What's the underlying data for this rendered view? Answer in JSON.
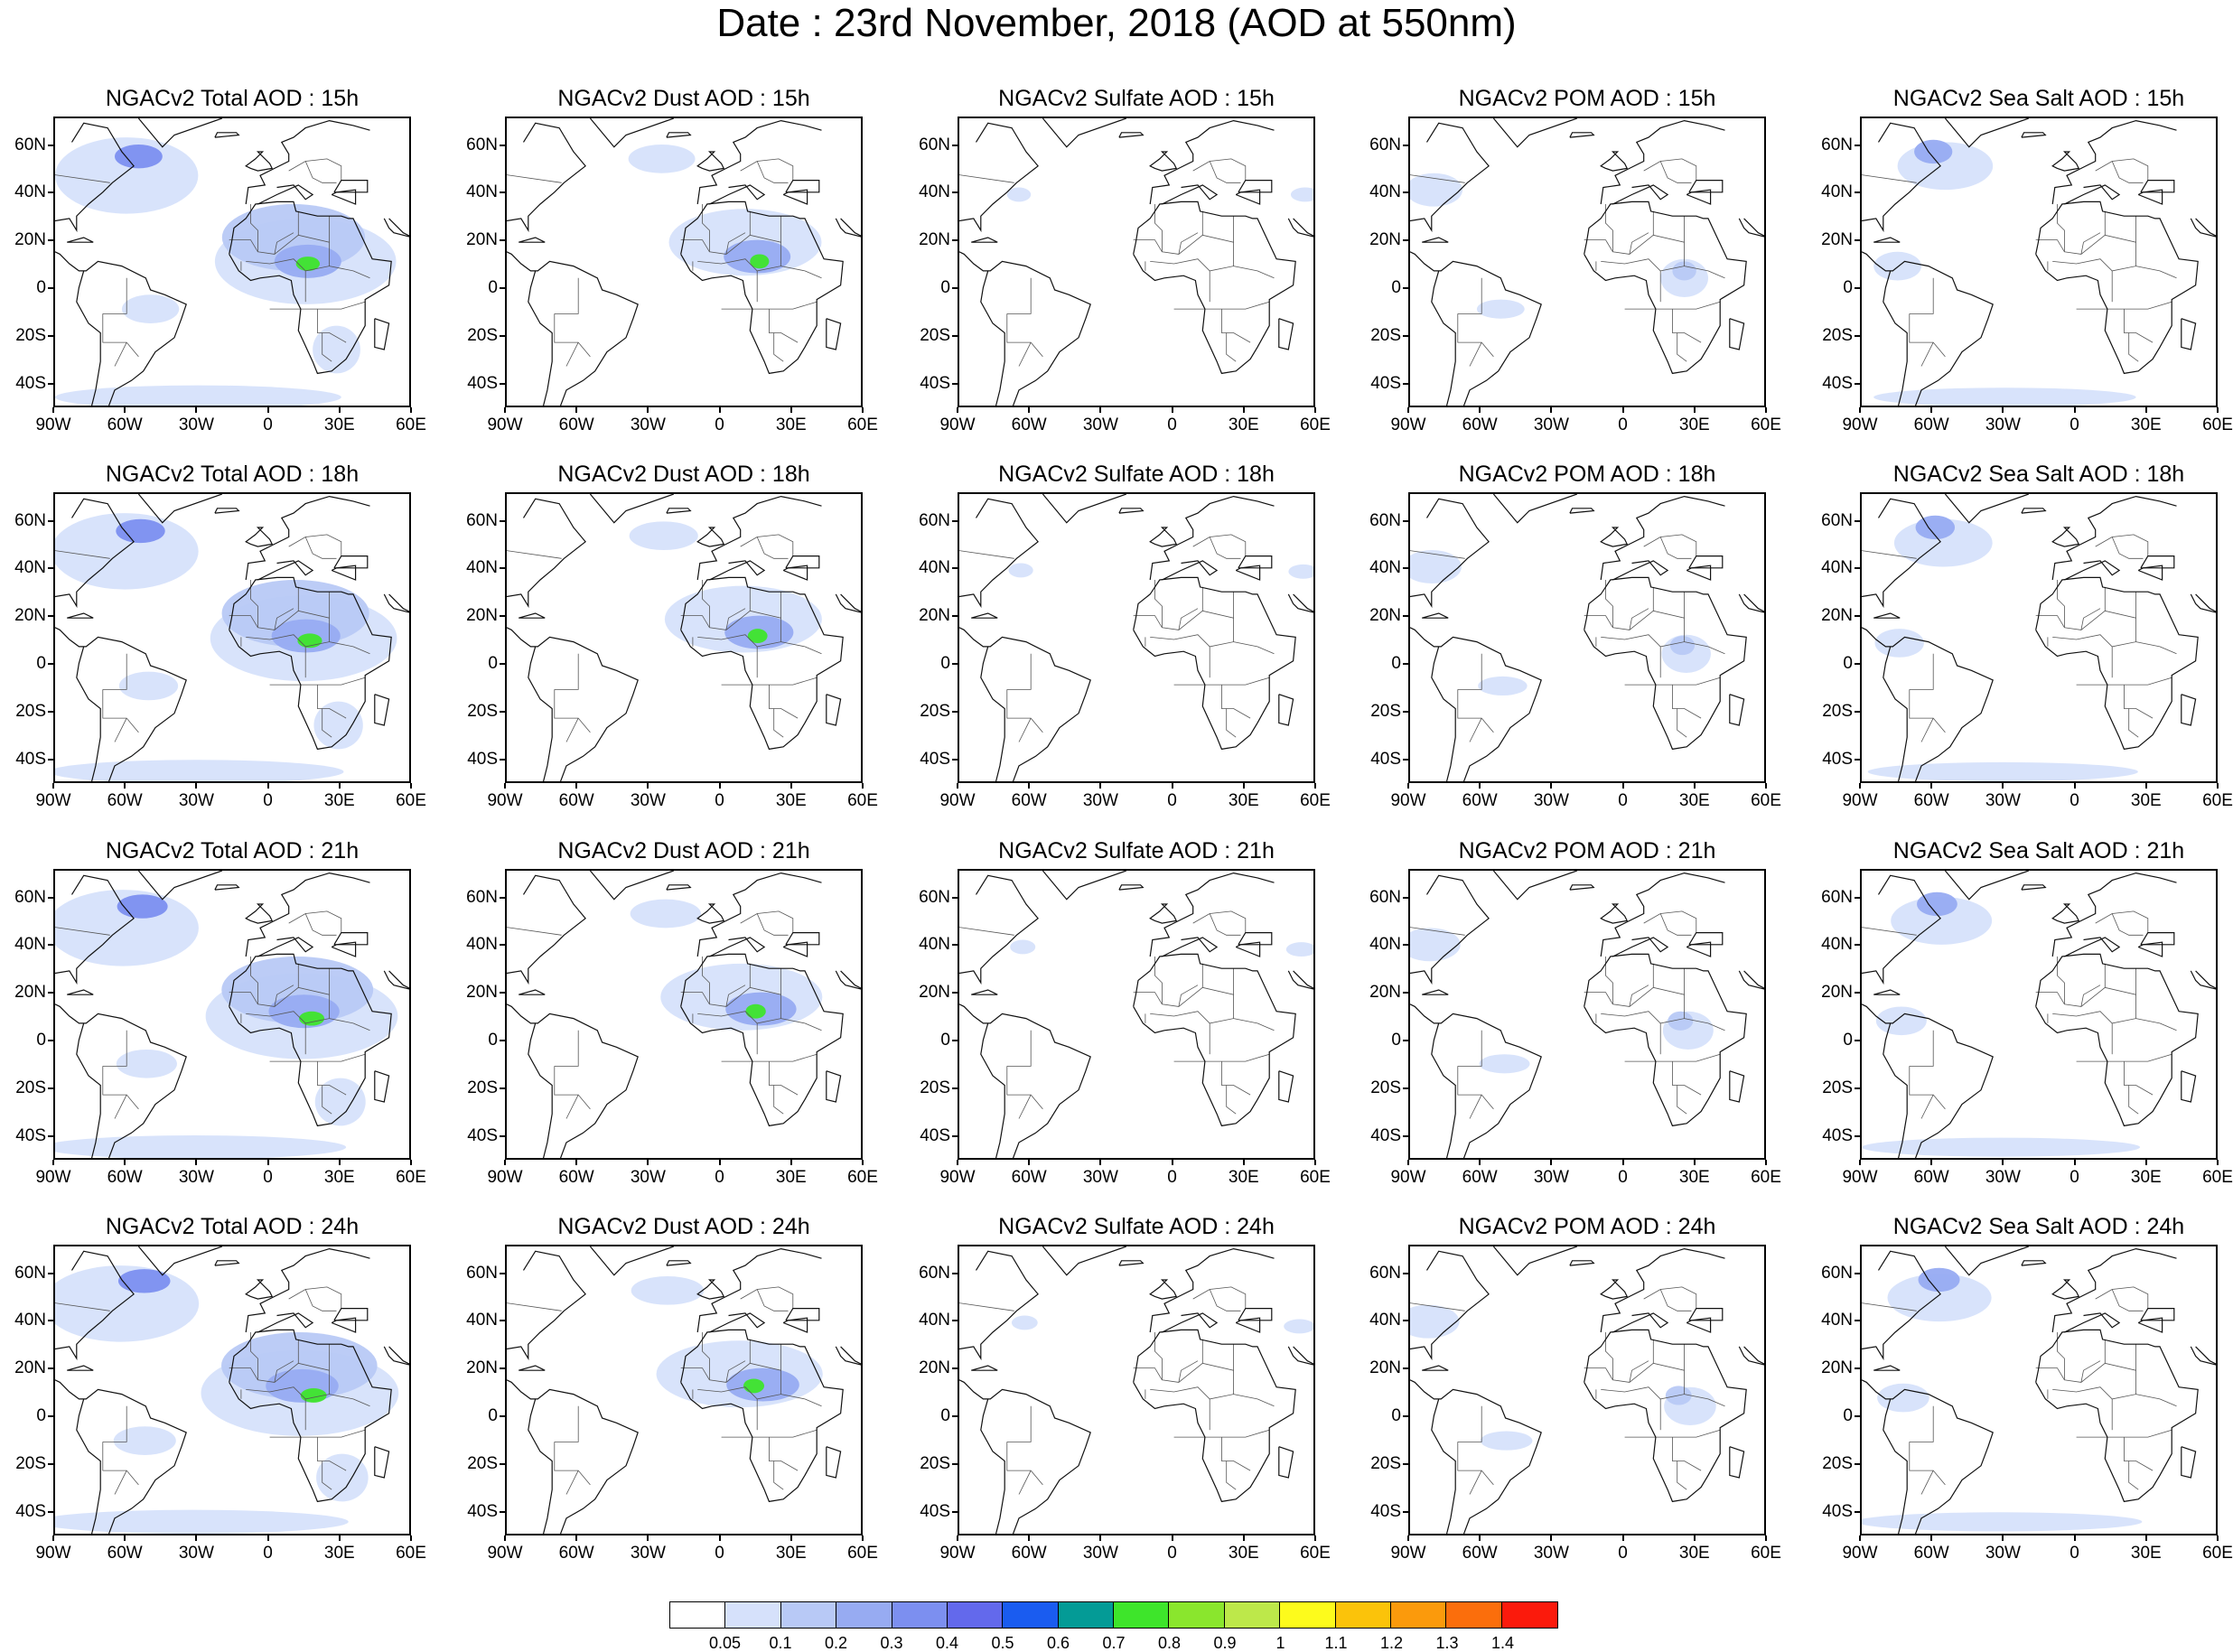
{
  "figure": {
    "title": "Date : 23rd November, 2018 (AOD at 550nm)"
  },
  "panels": [
    {
      "title": "NGACv2 Total AOD : 15h",
      "species": "total"
    },
    {
      "title": "NGACv2 Dust AOD : 15h",
      "species": "dust"
    },
    {
      "title": "NGACv2 Sulfate AOD : 15h",
      "species": "sulfate"
    },
    {
      "title": "NGACv2 POM AOD : 15h",
      "species": "pom"
    },
    {
      "title": "NGACv2 Sea Salt AOD : 15h",
      "species": "seasalt"
    },
    {
      "title": "NGACv2 Total AOD : 18h",
      "species": "total"
    },
    {
      "title": "NGACv2 Dust AOD : 18h",
      "species": "dust"
    },
    {
      "title": "NGACv2 Sulfate AOD : 18h",
      "species": "sulfate"
    },
    {
      "title": "NGACv2 POM AOD : 18h",
      "species": "pom"
    },
    {
      "title": "NGACv2 Sea Salt AOD : 18h",
      "species": "seasalt"
    },
    {
      "title": "NGACv2 Total AOD : 21h",
      "species": "total"
    },
    {
      "title": "NGACv2 Dust AOD : 21h",
      "species": "dust"
    },
    {
      "title": "NGACv2 Sulfate AOD : 21h",
      "species": "sulfate"
    },
    {
      "title": "NGACv2 POM AOD : 21h",
      "species": "pom"
    },
    {
      "title": "NGACv2 Sea Salt AOD : 21h",
      "species": "seasalt"
    },
    {
      "title": "NGACv2 Total AOD : 24h",
      "species": "total"
    },
    {
      "title": "NGACv2 Dust AOD : 24h",
      "species": "dust"
    },
    {
      "title": "NGACv2 Sulfate AOD : 24h",
      "species": "sulfate"
    },
    {
      "title": "NGACv2 POM AOD : 24h",
      "species": "pom"
    },
    {
      "title": "NGACv2 Sea Salt  AOD : 24h",
      "species": "seasalt"
    }
  ],
  "map_extent": {
    "lon_min": -90,
    "lon_max": 60,
    "lat_min": -50,
    "lat_max": 72
  },
  "lon_ticks": [
    {
      "value": -90,
      "label": "90W"
    },
    {
      "value": -60,
      "label": "60W"
    },
    {
      "value": -30,
      "label": "30W"
    },
    {
      "value": 0,
      "label": "0"
    },
    {
      "value": 30,
      "label": "30E"
    },
    {
      "value": 60,
      "label": "60E"
    }
  ],
  "lat_ticks": [
    {
      "value": 60,
      "label": "60N"
    },
    {
      "value": 40,
      "label": "40N"
    },
    {
      "value": 20,
      "label": "20N"
    },
    {
      "value": 0,
      "label": "0"
    },
    {
      "value": -20,
      "label": "20S"
    },
    {
      "value": -40,
      "label": "40S"
    }
  ],
  "colorbar": {
    "colors": [
      "#ffffff",
      "#d6e1fb",
      "#b8c9f6",
      "#97abf2",
      "#7c8ff0",
      "#6369ec",
      "#1a5cf0",
      "#049b96",
      "#3ee52b",
      "#8ae62d",
      "#bde84a",
      "#fdfb1c",
      "#fbc30a",
      "#fb9a0c",
      "#fb6e0c",
      "#fb1a0c"
    ],
    "labels": [
      "0.05",
      "0.1",
      "0.2",
      "0.3",
      "0.4",
      "0.5",
      "0.6",
      "0.7",
      "0.8",
      "0.9",
      "1",
      "1.1",
      "1.2",
      "1.3",
      "1.4"
    ]
  },
  "aod_fields": {
    "total": [
      {
        "lon": 15,
        "lat": 12,
        "rx": 38,
        "ry": 18,
        "level": 1
      },
      {
        "lon": 10,
        "lat": 22,
        "rx": 30,
        "ry": 14,
        "level": 2
      },
      {
        "lon": 16,
        "lat": 12,
        "rx": 14,
        "ry": 7,
        "level": 3
      },
      {
        "lon": 16,
        "lat": 11,
        "rx": 5,
        "ry": 3,
        "level": 8
      },
      {
        "lon": -60,
        "lat": 48,
        "rx": 30,
        "ry": 16,
        "level": 1
      },
      {
        "lon": -55,
        "lat": 56,
        "rx": 10,
        "ry": 5,
        "level": 4
      },
      {
        "lon": -50,
        "lat": -8,
        "rx": 12,
        "ry": 6,
        "level": 1
      },
      {
        "lon": 28,
        "lat": -25,
        "rx": 10,
        "ry": 10,
        "level": 1
      },
      {
        "lon": -30,
        "lat": -45,
        "rx": 60,
        "ry": 5,
        "level": 1
      }
    ],
    "dust": [
      {
        "lon": 10,
        "lat": 20,
        "rx": 32,
        "ry": 14,
        "level": 1
      },
      {
        "lon": 15,
        "lat": 14,
        "rx": 14,
        "ry": 7,
        "level": 3
      },
      {
        "lon": 16,
        "lat": 12,
        "rx": 4,
        "ry": 3,
        "level": 8
      },
      {
        "lon": -25,
        "lat": 55,
        "rx": 14,
        "ry": 6,
        "level": 1
      }
    ],
    "sulfate": [
      {
        "lon": 55,
        "lat": 40,
        "rx": 6,
        "ry": 3,
        "level": 1
      },
      {
        "lon": -65,
        "lat": 40,
        "rx": 5,
        "ry": 3,
        "level": 1
      }
    ],
    "pom": [
      {
        "lon": -80,
        "lat": 42,
        "rx": 12,
        "ry": 7,
        "level": 1
      },
      {
        "lon": 25,
        "lat": 5,
        "rx": 10,
        "ry": 8,
        "level": 1
      },
      {
        "lon": 25,
        "lat": 8,
        "rx": 5,
        "ry": 4,
        "level": 2
      },
      {
        "lon": -52,
        "lat": -8,
        "rx": 10,
        "ry": 4,
        "level": 1
      }
    ],
    "seasalt": [
      {
        "lon": -55,
        "lat": 52,
        "rx": 20,
        "ry": 10,
        "level": 1
      },
      {
        "lon": -60,
        "lat": 58,
        "rx": 8,
        "ry": 5,
        "level": 3
      },
      {
        "lon": -30,
        "lat": -45,
        "rx": 55,
        "ry": 4,
        "level": 1
      },
      {
        "lon": -75,
        "lat": 10,
        "rx": 10,
        "ry": 6,
        "level": 1
      }
    ]
  },
  "coastlines": [
    [
      [
        -83,
        62
      ],
      [
        -78,
        70
      ],
      [
        -68,
        68
      ],
      [
        -62,
        58
      ],
      [
        -57,
        52
      ],
      [
        -66,
        45
      ],
      [
        -70,
        41
      ],
      [
        -76,
        36
      ],
      [
        -81,
        31
      ],
      [
        -81,
        25
      ],
      [
        -84,
        30
      ],
      [
        -90,
        29
      ]
    ],
    [
      [
        -90,
        16
      ],
      [
        -88,
        15
      ],
      [
        -84,
        11
      ],
      [
        -80,
        8
      ],
      [
        -77,
        8
      ],
      [
        -72,
        12
      ],
      [
        -62,
        10
      ],
      [
        -52,
        5
      ],
      [
        -50,
        0
      ],
      [
        -44,
        -2
      ],
      [
        -35,
        -6
      ],
      [
        -37,
        -12
      ],
      [
        -40,
        -20
      ],
      [
        -48,
        -26
      ],
      [
        -53,
        -34
      ],
      [
        -58,
        -38
      ],
      [
        -65,
        -42
      ],
      [
        -68,
        -50
      ]
    ],
    [
      [
        -75,
        -50
      ],
      [
        -73,
        -42
      ],
      [
        -71,
        -30
      ],
      [
        -71,
        -18
      ],
      [
        -76,
        -14
      ],
      [
        -81,
        -5
      ],
      [
        -80,
        1
      ],
      [
        -78,
        8
      ]
    ],
    [
      [
        -17,
        15
      ],
      [
        -16,
        20
      ],
      [
        -15,
        26
      ],
      [
        -10,
        30
      ],
      [
        -6,
        36
      ],
      [
        3,
        37
      ],
      [
        10,
        37
      ],
      [
        11,
        33
      ],
      [
        20,
        31
      ],
      [
        30,
        31
      ],
      [
        33,
        30
      ],
      [
        35,
        30
      ],
      [
        43,
        13
      ],
      [
        51,
        12
      ],
      [
        50,
        2
      ],
      [
        40,
        -4
      ],
      [
        40,
        -15
      ],
      [
        35,
        -24
      ],
      [
        32,
        -29
      ],
      [
        26,
        -34
      ],
      [
        20,
        -35
      ],
      [
        18,
        -30
      ],
      [
        12,
        -17
      ],
      [
        13,
        -8
      ],
      [
        10,
        -2
      ],
      [
        9,
        4
      ],
      [
        4,
        6
      ],
      [
        -4,
        5
      ],
      [
        -8,
        4
      ],
      [
        -13,
        8
      ],
      [
        -17,
        15
      ]
    ],
    [
      [
        -10,
        36
      ],
      [
        -9,
        43
      ],
      [
        -2,
        44
      ],
      [
        -4,
        48
      ],
      [
        2,
        51
      ],
      [
        8,
        54
      ],
      [
        8,
        57
      ],
      [
        5,
        62
      ],
      [
        10,
        64
      ],
      [
        15,
        68
      ],
      [
        25,
        71
      ],
      [
        35,
        69
      ],
      [
        42,
        67
      ]
    ],
    [
      [
        -23,
        64
      ],
      [
        -13,
        65
      ],
      [
        -14,
        66
      ],
      [
        -22,
        66
      ],
      [
        -23,
        64
      ]
    ],
    [
      [
        -8,
        51
      ],
      [
        -10,
        52
      ],
      [
        -6,
        55
      ],
      [
        -3,
        58
      ],
      [
        -5,
        58
      ],
      [
        0,
        53
      ],
      [
        1,
        51
      ],
      [
        -5,
        50
      ],
      [
        -8,
        51
      ]
    ],
    [
      [
        -55,
        72
      ],
      [
        -45,
        60
      ],
      [
        -40,
        65
      ],
      [
        -20,
        72
      ]
    ],
    [
      [
        44,
        -12
      ],
      [
        50,
        -14
      ],
      [
        48,
        -25
      ],
      [
        44,
        -24
      ],
      [
        44,
        -12
      ]
    ],
    [
      [
        -5,
        36
      ],
      [
        3,
        40
      ],
      [
        12,
        44
      ],
      [
        18,
        40
      ],
      [
        15,
        38
      ],
      [
        10,
        44
      ],
      [
        3,
        43
      ]
    ],
    [
      [
        26,
        40
      ],
      [
        36,
        36
      ],
      [
        36,
        42
      ],
      [
        28,
        41
      ],
      [
        26,
        40
      ]
    ],
    [
      [
        27,
        41
      ],
      [
        41,
        41
      ],
      [
        41,
        46
      ],
      [
        30,
        46
      ],
      [
        27,
        41
      ]
    ],
    [
      [
        -85,
        20
      ],
      [
        -78,
        22
      ],
      [
        -74,
        20
      ],
      [
        -78,
        20
      ],
      [
        -85,
        20
      ]
    ],
    [
      [
        50,
        30
      ],
      [
        56,
        24
      ],
      [
        60,
        22
      ],
      [
        52,
        24
      ],
      [
        50,
        26
      ],
      [
        48,
        30
      ]
    ]
  ],
  "borders": [
    [
      [
        -17,
        21
      ],
      [
        -8,
        21
      ],
      [
        -5,
        16
      ],
      [
        2,
        15
      ],
      [
        12,
        23
      ],
      [
        25,
        20
      ],
      [
        25,
        10
      ],
      [
        15,
        8
      ],
      [
        10,
        13
      ],
      [
        0,
        11
      ],
      [
        -10,
        12
      ]
    ],
    [
      [
        12,
        23
      ],
      [
        12,
        33
      ]
    ],
    [
      [
        25,
        20
      ],
      [
        25,
        31
      ]
    ],
    [
      [
        25,
        10
      ],
      [
        35,
        8
      ]
    ],
    [
      [
        15,
        8
      ],
      [
        15,
        -5
      ]
    ],
    [
      [
        -5,
        16
      ],
      [
        -5,
        25
      ],
      [
        -8,
        28
      ],
      [
        -8,
        36
      ]
    ],
    [
      [
        0,
        -8
      ],
      [
        20,
        -8
      ],
      [
        30,
        -8
      ],
      [
        40,
        -5
      ]
    ],
    [
      [
        20,
        -8
      ],
      [
        20,
        -18
      ],
      [
        25,
        -18
      ],
      [
        32,
        -22
      ]
    ],
    [
      [
        -12,
        12
      ],
      [
        -12,
        8
      ]
    ],
    [
      [
        2,
        15
      ],
      [
        3,
        20
      ],
      [
        10,
        24
      ]
    ],
    [
      [
        -60,
        5
      ],
      [
        -60,
        -10
      ],
      [
        -70,
        -10
      ]
    ],
    [
      [
        -70,
        -10
      ],
      [
        -70,
        -22
      ],
      [
        -60,
        -22
      ],
      [
        -55,
        -28
      ]
    ],
    [
      [
        -60,
        -22
      ],
      [
        -65,
        -32
      ]
    ],
    [
      [
        30,
        46
      ],
      [
        30,
        52
      ],
      [
        24,
        55
      ],
      [
        15,
        54
      ],
      [
        8,
        50
      ]
    ],
    [
      [
        15,
        54
      ],
      [
        18,
        47
      ],
      [
        22,
        45
      ],
      [
        28,
        45
      ]
    ],
    [
      [
        -95,
        49
      ],
      [
        -67,
        45
      ]
    ],
    [
      [
        35,
        8
      ],
      [
        42,
        5
      ]
    ],
    [
      [
        22,
        -18
      ],
      [
        22,
        -27
      ],
      [
        26,
        -30
      ]
    ]
  ]
}
